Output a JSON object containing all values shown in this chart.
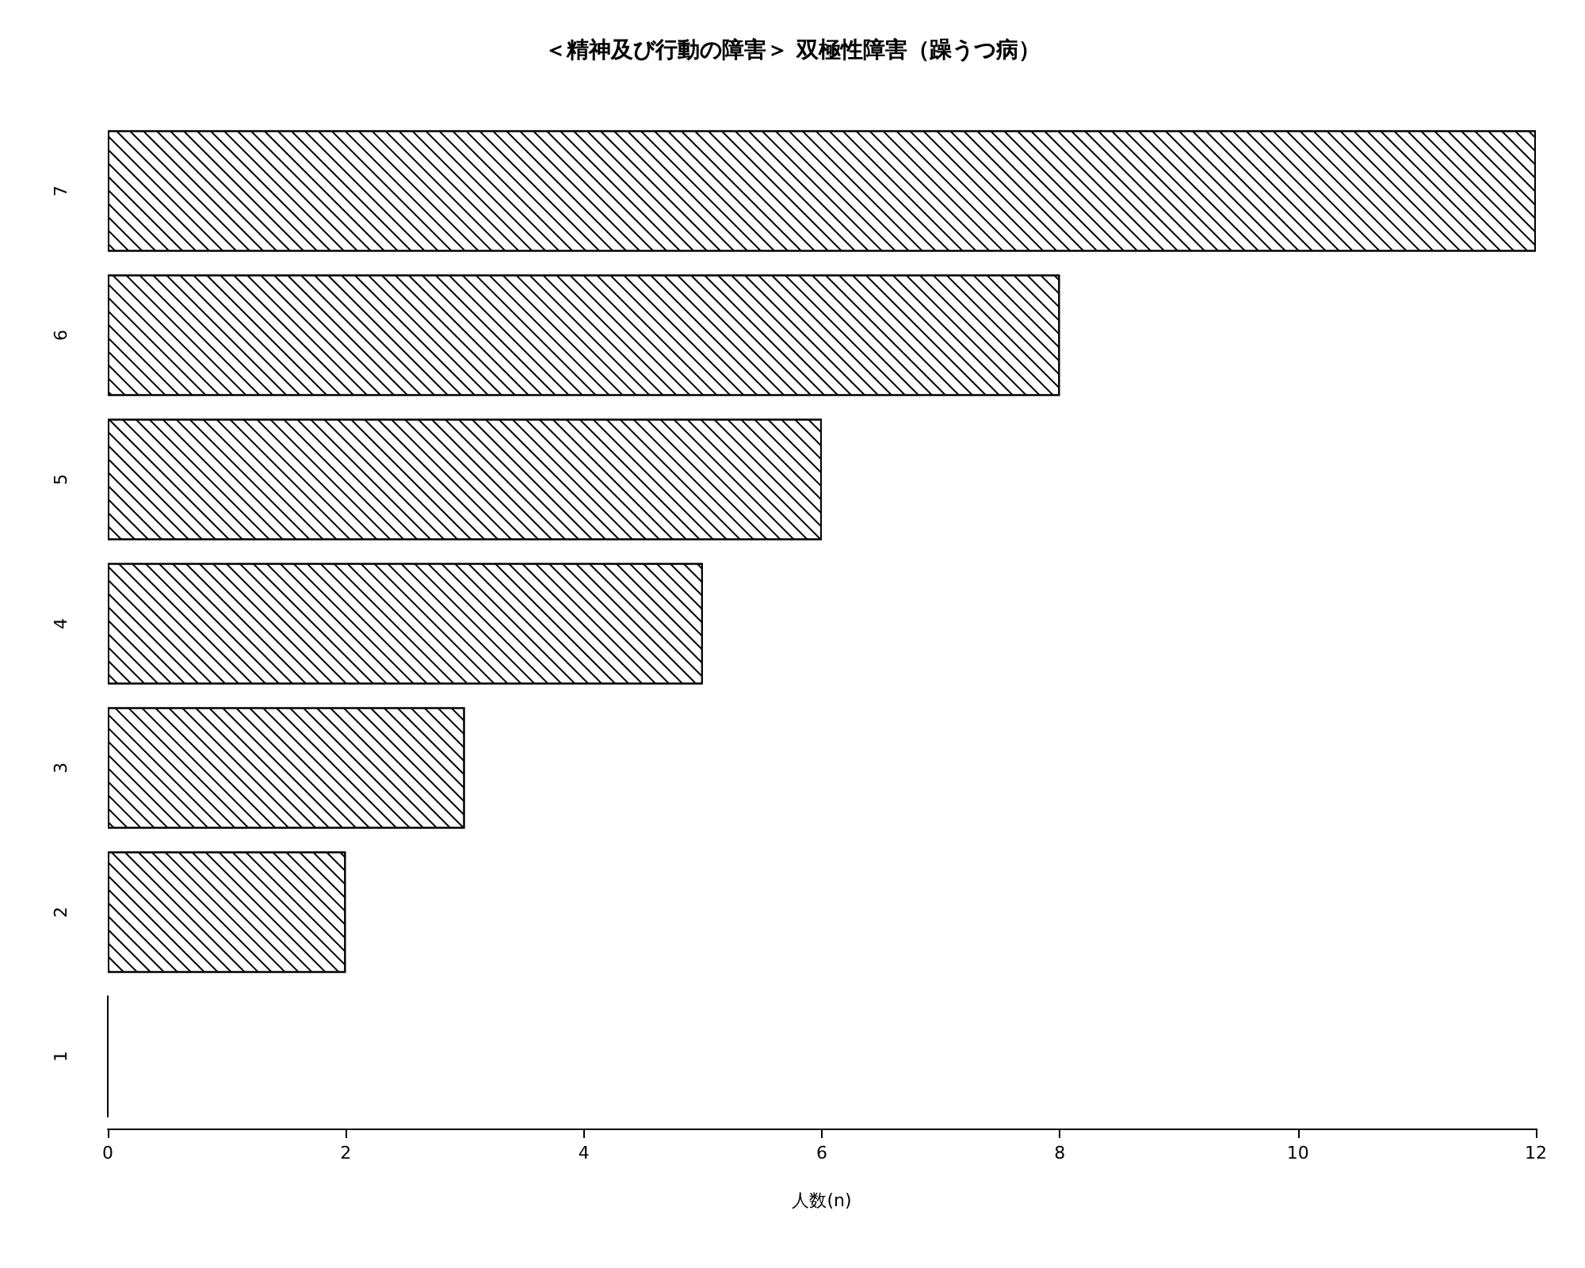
{
  "chart_data": {
    "type": "bar",
    "orientation": "horizontal",
    "title": "＜精神及び行動の障害＞ 双極性障害（躁うつ病）",
    "xlabel": "人数(n)",
    "categories": [
      "7",
      "6",
      "5",
      "4",
      "3",
      "2",
      "1"
    ],
    "values": [
      12,
      8,
      6,
      5,
      3,
      2,
      0
    ],
    "color": "#000000",
    "xlim": [
      0,
      12
    ],
    "xticks": [
      0,
      2,
      4,
      6,
      8,
      10,
      12
    ],
    "grid": false
  }
}
